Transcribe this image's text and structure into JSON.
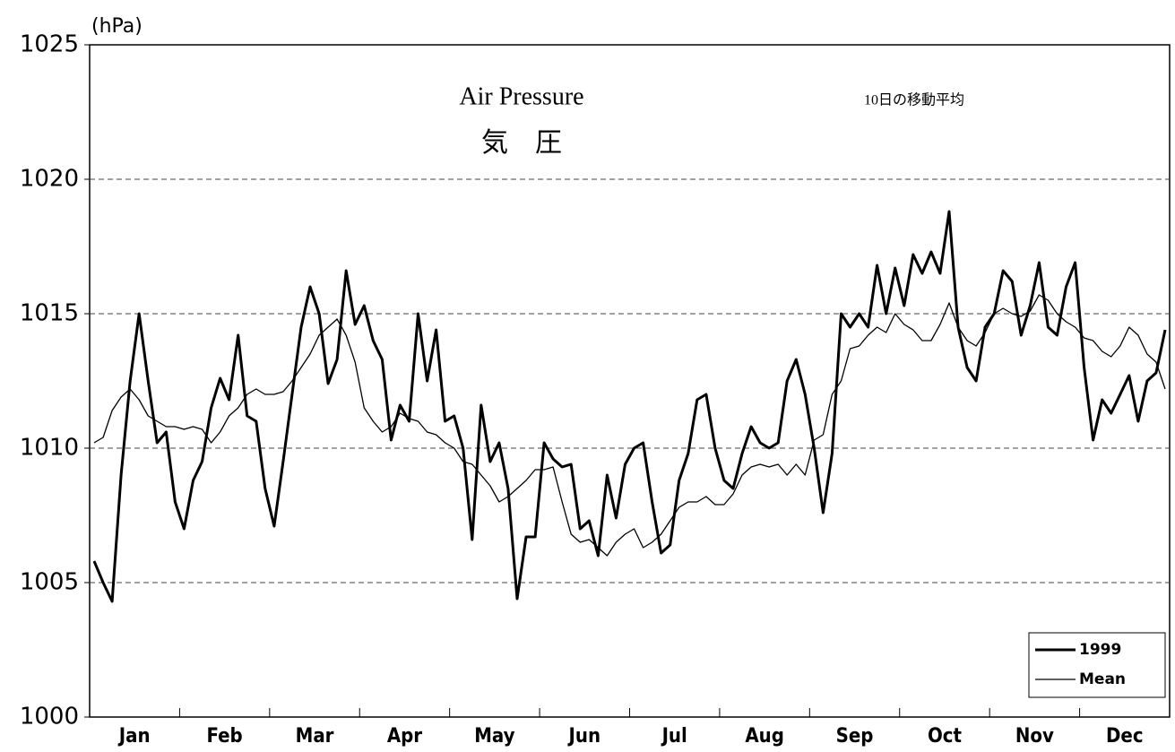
{
  "chart_data": {
    "type": "line",
    "title": "Air Pressure",
    "subtitle": "気　圧",
    "annotation": "10日の移動平均",
    "y_label": "(hPa)",
    "categories": [
      "Jan",
      "Feb",
      "Mar",
      "Apr",
      "May",
      "Jun",
      "Jul",
      "Aug",
      "Sep",
      "Oct",
      "Nov",
      "Dec"
    ],
    "ylim": [
      1000,
      1025
    ],
    "yticks": [
      1000,
      1005,
      1010,
      1015,
      1020,
      1025
    ],
    "grid": true,
    "legend": "lower right",
    "series": [
      {
        "name": "1999",
        "color": "#000000",
        "width": 3,
        "values": [
          [
            1005.8,
            1005,
            1004.3,
            1009,
            1012.5,
            1015,
            1012.5,
            1010.2,
            1010.6,
            1008
          ],
          [
            1007,
            1008.8,
            1009.5,
            1011.5,
            1012.6,
            1011.8,
            1014.2,
            1011.2,
            1011,
            1008.5
          ],
          [
            1007.1,
            1009.5,
            1012,
            1014.5,
            1016,
            1015,
            1012.4,
            1013.3,
            1016.6,
            1014.6
          ],
          [
            1015.3,
            1014,
            1013.3,
            1010.3,
            1011.6,
            1011,
            1015,
            1012.5,
            1014.4,
            1011
          ],
          [
            1011.2,
            1010,
            1006.6,
            1011.6,
            1009.5,
            1010.2,
            1008.5,
            1004.4,
            1006.7,
            1006.7
          ],
          [
            1010.2,
            1009.6,
            1009.3,
            1009.4,
            1007,
            1007.3,
            1006,
            1009,
            1007.4,
            1009.4
          ],
          [
            1010,
            1010.2,
            1008,
            1006.1,
            1006.4,
            1008.8,
            1009.8,
            1011.8,
            1012,
            1010
          ],
          [
            1008.8,
            1008.5,
            1009.8,
            1010.8,
            1010.2,
            1010,
            1010.2,
            1012.5,
            1013.3,
            1012
          ],
          [
            1010,
            1007.6,
            1009.8,
            1015,
            1014.5,
            1015,
            1014.5,
            1016.8,
            1015,
            1016.7
          ],
          [
            1015.3,
            1017.2,
            1016.5,
            1017.3,
            1016.5,
            1018.8,
            1014.5,
            1013,
            1012.5,
            1014.5
          ],
          [
            1015,
            1016.6,
            1016.2,
            1014.2,
            1015.3,
            1016.9,
            1014.5,
            1014.2,
            1016,
            1016.9
          ],
          [
            1013,
            1010.3,
            1011.8,
            1011.3,
            1012,
            1012.7,
            1011,
            1012.5,
            1012.8,
            1014.4
          ]
        ]
      },
      {
        "name": "Mean",
        "color": "#000000",
        "width": 1.3,
        "values": [
          [
            1010.2,
            1010.4,
            1011.4,
            1011.9,
            1012.2,
            1011.8,
            1011.2,
            1011,
            1010.8,
            1010.8
          ],
          [
            1010.7,
            1010.8,
            1010.7,
            1010.2,
            1010.6,
            1011.2,
            1011.5,
            1012,
            1012.2,
            1012
          ],
          [
            1012,
            1012.1,
            1012.5,
            1013,
            1013.5,
            1014.2,
            1014.5,
            1014.8,
            1014.2,
            1013.2
          ],
          [
            1011.5,
            1011,
            1010.6,
            1010.8,
            1011.3,
            1011.1,
            1011,
            1010.6,
            1010.5,
            1010.2
          ],
          [
            1010,
            1009.5,
            1009.4,
            1009,
            1008.6,
            1008,
            1008.2,
            1008.5,
            1008.8,
            1009.2
          ],
          [
            1009.2,
            1009.3,
            1008,
            1006.8,
            1006.5,
            1006.6,
            1006.3,
            1006,
            1006.5,
            1006.8
          ],
          [
            1007,
            1006.3,
            1006.5,
            1006.8,
            1007.3,
            1007.8,
            1008,
            1008,
            1008.2,
            1007.9
          ],
          [
            1007.9,
            1008.3,
            1009,
            1009.3,
            1009.4,
            1009.3,
            1009.4,
            1009,
            1009.4,
            1009
          ],
          [
            1010.3,
            1010.5,
            1012,
            1012.5,
            1013.7,
            1013.8,
            1014.2,
            1014.5,
            1014.3,
            1015
          ],
          [
            1014.6,
            1014.4,
            1014,
            1014,
            1014.6,
            1015.4,
            1014.5,
            1014,
            1013.8,
            1014.3
          ],
          [
            1015,
            1015.2,
            1015,
            1014.9,
            1015.1,
            1015.7,
            1015.5,
            1015,
            1014.7,
            1014.5
          ],
          [
            1014.1,
            1014,
            1013.6,
            1013.4,
            1013.8,
            1014.5,
            1014.2,
            1013.5,
            1013.2,
            1012.2
          ]
        ]
      }
    ]
  }
}
